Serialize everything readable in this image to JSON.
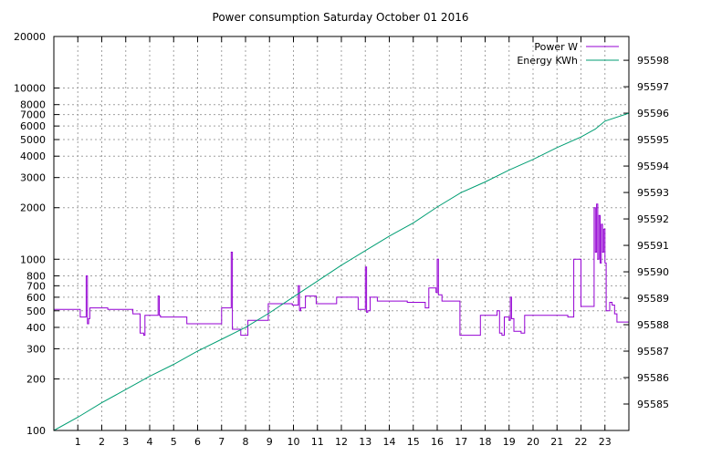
{
  "chart_data": {
    "type": "line",
    "title": "Power consumption Saturday October 01 2016",
    "xlabel": "",
    "ylabel": "",
    "y2label": "",
    "grid": true,
    "legend_position": "top-right",
    "x_axis": {
      "unit": "hour of day",
      "range": [
        0,
        24
      ],
      "ticks": [
        "1",
        "2",
        "3",
        "4",
        "5",
        "6",
        "7",
        "8",
        "9",
        "10",
        "11",
        "12",
        "13",
        "14",
        "15",
        "16",
        "17",
        "18",
        "19",
        "20",
        "21",
        "22",
        "23"
      ]
    },
    "y_left": {
      "scale": "log",
      "range": [
        100,
        20000
      ],
      "ticks": [
        100,
        200,
        300,
        400,
        500,
        600,
        700,
        800,
        1000,
        2000,
        3000,
        4000,
        5000,
        6000,
        7000,
        8000,
        10000,
        20000
      ]
    },
    "y_right": {
      "scale": "linear",
      "range": [
        95584.0,
        95598.9
      ],
      "ticks": [
        95585,
        95586,
        95587,
        95588,
        95589,
        95590,
        95591,
        95592,
        95593,
        95594,
        95595,
        95596,
        95597,
        95598
      ]
    },
    "series": [
      {
        "name": "Power W",
        "axis": "left",
        "color": "#9400d3",
        "step": true,
        "x": [
          0,
          1.1,
          1.35,
          1.4,
          1.45,
          1.5,
          1.55,
          2.25,
          3.3,
          3.6,
          3.75,
          3.8,
          3.85,
          4.35,
          4.4,
          4.45,
          5.55,
          7.0,
          7.4,
          7.45,
          7.5,
          7.8,
          8.1,
          8.95,
          9.95,
          10.2,
          10.25,
          10.3,
          10.5,
          10.95,
          11.8,
          12.7,
          13.0,
          13.05,
          13.1,
          13.2,
          13.5,
          14.75,
          15.5,
          15.65,
          15.95,
          16.0,
          16.05,
          16.2,
          16.95,
          17.8,
          18.5,
          18.6,
          18.7,
          18.8,
          19.0,
          19.05,
          19.1,
          19.2,
          19.5,
          19.65,
          20.3,
          21.3,
          21.45,
          21.7,
          22.0,
          22.55,
          22.6,
          22.65,
          22.7,
          22.75,
          22.8,
          22.85,
          22.9,
          22.95,
          23.0,
          23.05,
          23.2,
          23.3,
          23.4,
          23.5,
          24.0
        ],
        "values": [
          510,
          460,
          800,
          420,
          450,
          520,
          520,
          510,
          480,
          370,
          360,
          470,
          470,
          610,
          470,
          460,
          420,
          520,
          1100,
          390,
          390,
          360,
          440,
          550,
          540,
          700,
          500,
          520,
          610,
          550,
          600,
          510,
          900,
          490,
          500,
          600,
          570,
          560,
          520,
          680,
          640,
          1000,
          620,
          570,
          360,
          470,
          500,
          370,
          360,
          460,
          440,
          600,
          450,
          380,
          370,
          470,
          470,
          470,
          460,
          1000,
          530,
          2000,
          1100,
          2100,
          1000,
          1800,
          950,
          1600,
          1100,
          1500,
          950,
          500,
          560,
          540,
          480,
          430,
          420
        ]
      },
      {
        "name": "Energy KWh",
        "axis": "right",
        "color": "#009e73",
        "step": false,
        "x": [
          0,
          1,
          2,
          3,
          4,
          5,
          6,
          7,
          8,
          9,
          10,
          11,
          12,
          13,
          14,
          15,
          16,
          17,
          18,
          19,
          20,
          21,
          22,
          22.6,
          23,
          24
        ],
        "values": [
          95584.0,
          95584.5,
          95585.05,
          95585.55,
          95586.05,
          95586.5,
          95587.0,
          95587.45,
          95587.9,
          95588.45,
          95589.05,
          95589.65,
          95590.25,
          95590.8,
          95591.35,
          95591.85,
          95592.45,
          95593.0,
          95593.4,
          95593.85,
          95594.25,
          95594.7,
          95595.1,
          95595.4,
          95595.7,
          95596.0
        ]
      }
    ]
  }
}
